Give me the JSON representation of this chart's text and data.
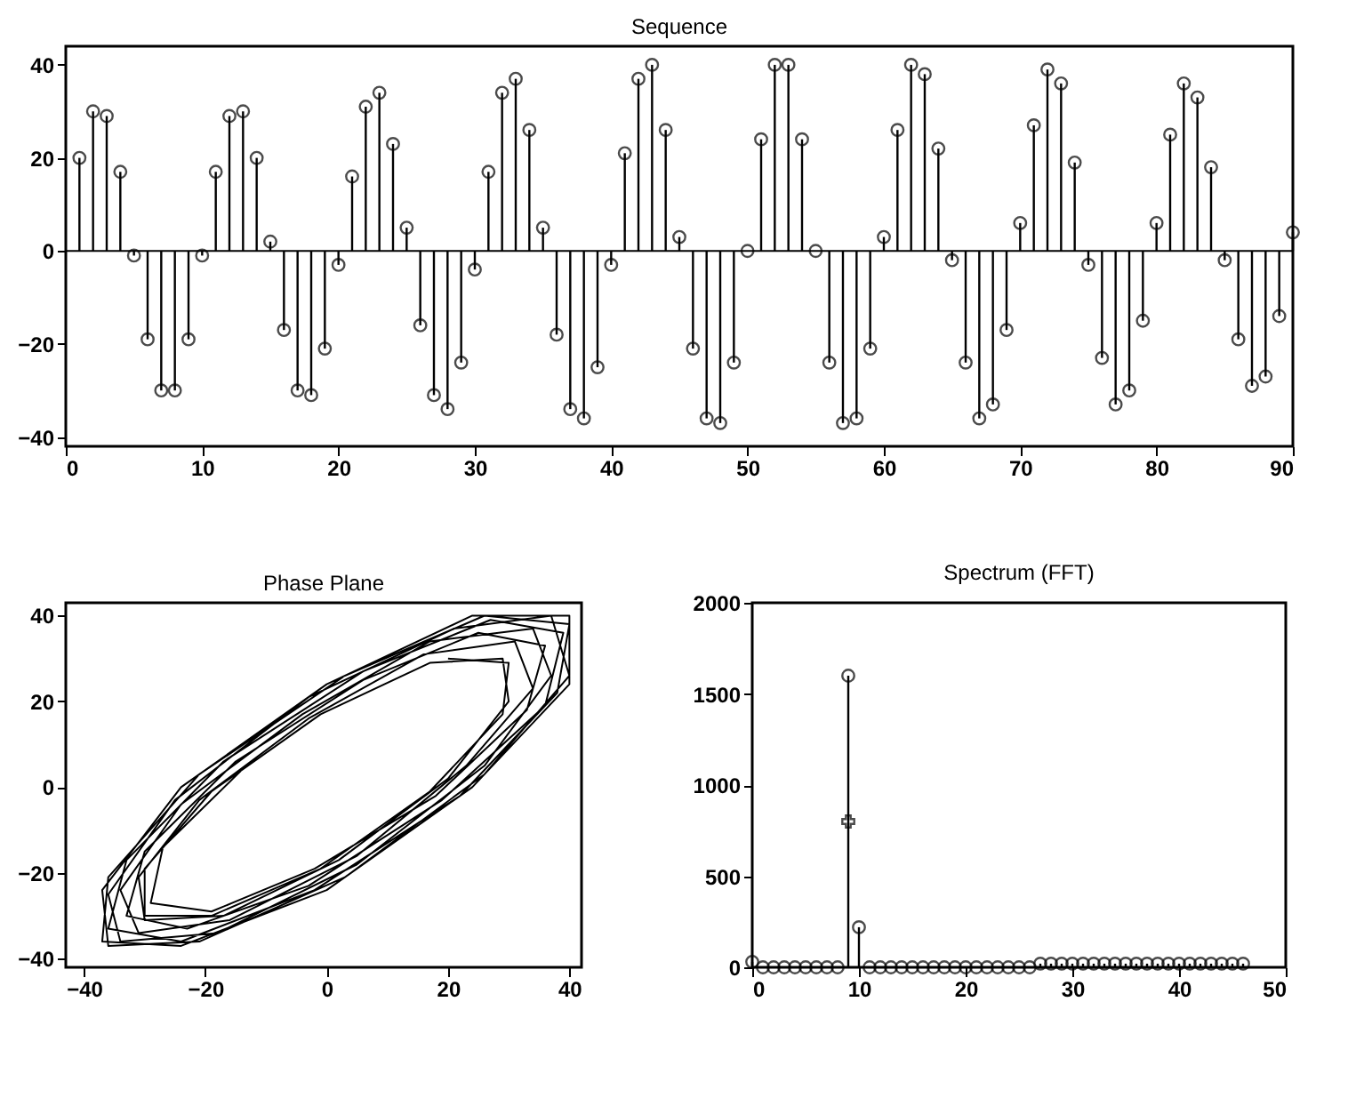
{
  "chart_data": [
    {
      "type": "lollipop",
      "title": "Sequence",
      "color": "#000000",
      "marker": "circle",
      "x": [
        1,
        2,
        3,
        4,
        5,
        6,
        7,
        8,
        9,
        10,
        11,
        12,
        13,
        14,
        15,
        16,
        17,
        18,
        19,
        20,
        21,
        22,
        23,
        24,
        25,
        26,
        27,
        28,
        29,
        30,
        31,
        32,
        33,
        34,
        35,
        36,
        37,
        38,
        39,
        40,
        41,
        42,
        43,
        44,
        45,
        46,
        47,
        48,
        49,
        50,
        51,
        52,
        53,
        54,
        55,
        56,
        57,
        58,
        59,
        60,
        61,
        62,
        63,
        64,
        65,
        66,
        67,
        68,
        69,
        70,
        71,
        72,
        73,
        74,
        75,
        76,
        77,
        78,
        79,
        80,
        81,
        82,
        83,
        84,
        85,
        86,
        87,
        88,
        89,
        90
      ],
      "values": [
        20,
        30,
        29,
        17,
        -1,
        -19,
        -30,
        -30,
        -19,
        -1,
        17,
        29,
        30,
        20,
        2,
        -17,
        -30,
        -31,
        -21,
        -3,
        16,
        31,
        34,
        23,
        5,
        -16,
        -31,
        -34,
        -24,
        -4,
        17,
        34,
        37,
        26,
        5,
        -18,
        -34,
        -36,
        -25,
        -3,
        21,
        37,
        40,
        26,
        3,
        -21,
        -36,
        -37,
        -24,
        0,
        24,
        40,
        40,
        24,
        0,
        -24,
        -37,
        -36,
        -21,
        3,
        26,
        40,
        38,
        22,
        -2,
        -24,
        -36,
        -33,
        -17,
        6,
        27,
        39,
        36,
        19,
        -3,
        -23,
        -33,
        -30,
        -15,
        6,
        25,
        36,
        33,
        18,
        -2,
        -19,
        -29,
        -27,
        -14,
        4
      ],
      "xlim": [
        0,
        90
      ],
      "ylim": [
        -42,
        44
      ],
      "xticks": [
        0,
        10,
        20,
        30,
        40,
        50,
        60,
        70,
        80,
        90
      ],
      "yticks": [
        -40,
        -20,
        0,
        20,
        40
      ],
      "ref_lines": [
        {
          "axis": "y",
          "value": 0,
          "color": "#000000"
        }
      ]
    },
    {
      "type": "line",
      "title": "Phase Plane",
      "color": "#000000",
      "x": [
        20,
        30,
        29,
        17,
        -1,
        -19,
        -30,
        -30,
        -19,
        -1,
        17,
        29,
        30,
        20,
        2,
        -17,
        -30,
        -31,
        -21,
        -3,
        16,
        31,
        34,
        23,
        5,
        -16,
        -31,
        -34,
        -24,
        -4,
        17,
        34,
        37,
        26,
        5,
        -18,
        -34,
        -36,
        -25,
        -3,
        21,
        37,
        40,
        26,
        3,
        -21,
        -36,
        -37,
        -24,
        0,
        24,
        40,
        40,
        24,
        0,
        -24,
        -37,
        -36,
        -21,
        3,
        26,
        40,
        38,
        22,
        -2,
        -24,
        -36,
        -33,
        -17,
        6,
        27,
        39,
        36,
        19,
        -3,
        -23,
        -33,
        -30,
        -15,
        6,
        25,
        36,
        33,
        18,
        -2,
        -19,
        -29,
        -27,
        -14
      ],
      "values": [
        30,
        29,
        17,
        -1,
        -19,
        -30,
        -30,
        -19,
        -1,
        17,
        29,
        30,
        20,
        2,
        -17,
        -30,
        -31,
        -21,
        -3,
        16,
        31,
        34,
        23,
        5,
        -16,
        -31,
        -34,
        -24,
        -4,
        17,
        34,
        37,
        26,
        5,
        -18,
        -34,
        -36,
        -25,
        -3,
        21,
        37,
        40,
        26,
        3,
        -21,
        -36,
        -37,
        -24,
        0,
        24,
        40,
        40,
        24,
        0,
        -24,
        -37,
        -36,
        -21,
        3,
        26,
        40,
        38,
        22,
        -2,
        -24,
        -36,
        -33,
        -17,
        6,
        27,
        39,
        36,
        19,
        -3,
        -23,
        -33,
        -30,
        -15,
        6,
        25,
        36,
        33,
        18,
        -2,
        -19,
        -29,
        -27,
        -14,
        4
      ],
      "xlim": [
        -43,
        42
      ],
      "ylim": [
        -42,
        43
      ],
      "xticks": [
        -40,
        -20,
        0,
        20,
        40
      ],
      "yticks": [
        -40,
        -20,
        0,
        20,
        40
      ]
    },
    {
      "type": "lollipop",
      "title": "Spectrum (FFT)",
      "series": [
        {
          "type": "lollipop",
          "color": "#000000",
          "marker": "circle",
          "x": [
            0,
            1,
            2,
            3,
            4,
            5,
            6,
            7,
            8,
            9,
            10,
            11,
            12,
            13,
            14,
            15,
            16,
            17,
            18,
            19,
            20,
            21,
            22,
            23,
            24,
            25,
            26,
            27,
            28,
            29,
            30,
            31,
            32,
            33,
            34,
            35,
            36,
            37,
            38,
            39,
            40,
            41,
            42,
            43,
            44,
            45,
            46
          ],
          "values": [
            30,
            0,
            0,
            0,
            0,
            0,
            0,
            0,
            0,
            1600,
            220,
            0,
            0,
            0,
            0,
            0,
            0,
            0,
            0,
            0,
            0,
            0,
            0,
            0,
            0,
            0,
            0,
            20,
            20,
            20,
            20,
            20,
            20,
            20,
            20,
            20,
            20,
            20,
            20,
            20,
            20,
            20,
            20,
            20,
            20,
            20,
            20
          ]
        },
        {
          "type": "scatter",
          "color": "#000000",
          "marker": "cross",
          "x": [
            9
          ],
          "values": [
            800
          ]
        }
      ],
      "xlim": [
        0,
        50
      ],
      "ylim": [
        0,
        2000
      ],
      "xticks": [
        0,
        10,
        20,
        30,
        40,
        50
      ],
      "yticks": [
        0,
        500,
        1000,
        1500,
        2000
      ]
    }
  ]
}
